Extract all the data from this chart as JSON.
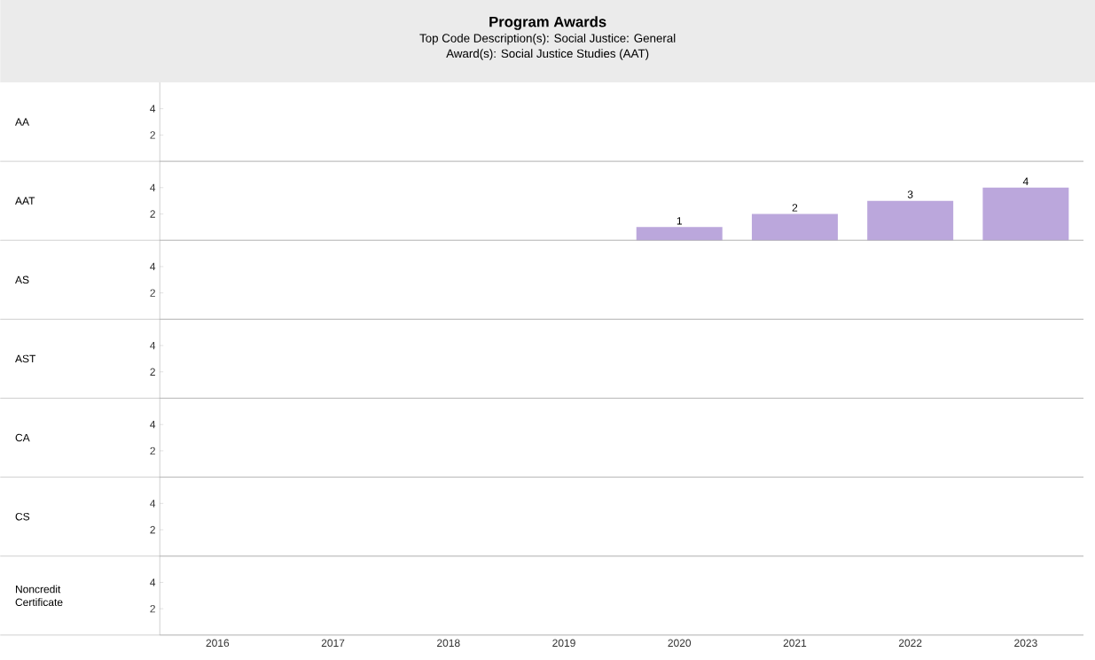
{
  "chart_data": [
    {
      "type": "bar",
      "title": "Program Awards",
      "subtitle": "Top Code Description(s): Social Justice: General",
      "annotations": [
        "Award(s): Social Justice Studies (AAT)"
      ],
      "ylabel": "AA",
      "categories": [
        "2016",
        "2017",
        "2018",
        "2019",
        "2020",
        "2021",
        "2022",
        "2023"
      ],
      "values": [
        null,
        null,
        null,
        null,
        null,
        null,
        null,
        null
      ],
      "ylim": [
        0,
        6
      ],
      "yticks": [
        2,
        4
      ],
      "tick_labels": "y"
    },
    {
      "type": "bar",
      "ylabel": "AAT",
      "categories": [
        "2016",
        "2017",
        "2018",
        "2019",
        "2020",
        "2021",
        "2022",
        "2023"
      ],
      "values": [
        null,
        null,
        null,
        null,
        1,
        2,
        3,
        4
      ],
      "color": "#bba7dc",
      "data_labels": true,
      "ylim": [
        0,
        6
      ],
      "yticks": [
        2,
        4
      ],
      "tick_labels": "y"
    },
    {
      "type": "bar",
      "ylabel": "AS",
      "categories": [
        "2016",
        "2017",
        "2018",
        "2019",
        "2020",
        "2021",
        "2022",
        "2023"
      ],
      "values": [
        null,
        null,
        null,
        null,
        null,
        null,
        null,
        null
      ],
      "ylim": [
        0,
        6
      ],
      "yticks": [
        2,
        4
      ],
      "tick_labels": "y"
    },
    {
      "type": "bar",
      "ylabel": "AST",
      "categories": [
        "2016",
        "2017",
        "2018",
        "2019",
        "2020",
        "2021",
        "2022",
        "2023"
      ],
      "values": [
        null,
        null,
        null,
        null,
        null,
        null,
        null,
        null
      ],
      "ylim": [
        0,
        6
      ],
      "yticks": [
        2,
        4
      ],
      "tick_labels": "y"
    },
    {
      "type": "bar",
      "ylabel": "CA",
      "categories": [
        "2016",
        "2017",
        "2018",
        "2019",
        "2020",
        "2021",
        "2022",
        "2023"
      ],
      "values": [
        null,
        null,
        null,
        null,
        null,
        null,
        null,
        null
      ],
      "ylim": [
        0,
        6
      ],
      "yticks": [
        2,
        4
      ],
      "tick_labels": "y"
    },
    {
      "type": "bar",
      "ylabel": "CS",
      "categories": [
        "2016",
        "2017",
        "2018",
        "2019",
        "2020",
        "2021",
        "2022",
        "2023"
      ],
      "values": [
        null,
        null,
        null,
        null,
        null,
        null,
        null,
        null
      ],
      "ylim": [
        0,
        6
      ],
      "yticks": [
        2,
        4
      ],
      "tick_labels": "y"
    },
    {
      "type": "bar",
      "ylabel": "Noncredit Certificate",
      "categories": [
        "2016",
        "2017",
        "2018",
        "2019",
        "2020",
        "2021",
        "2022",
        "2023"
      ],
      "values": [
        null,
        null,
        null,
        null,
        null,
        null,
        null,
        null
      ],
      "ylim": [
        0,
        6
      ],
      "yticks": [
        2,
        4
      ]
    }
  ]
}
